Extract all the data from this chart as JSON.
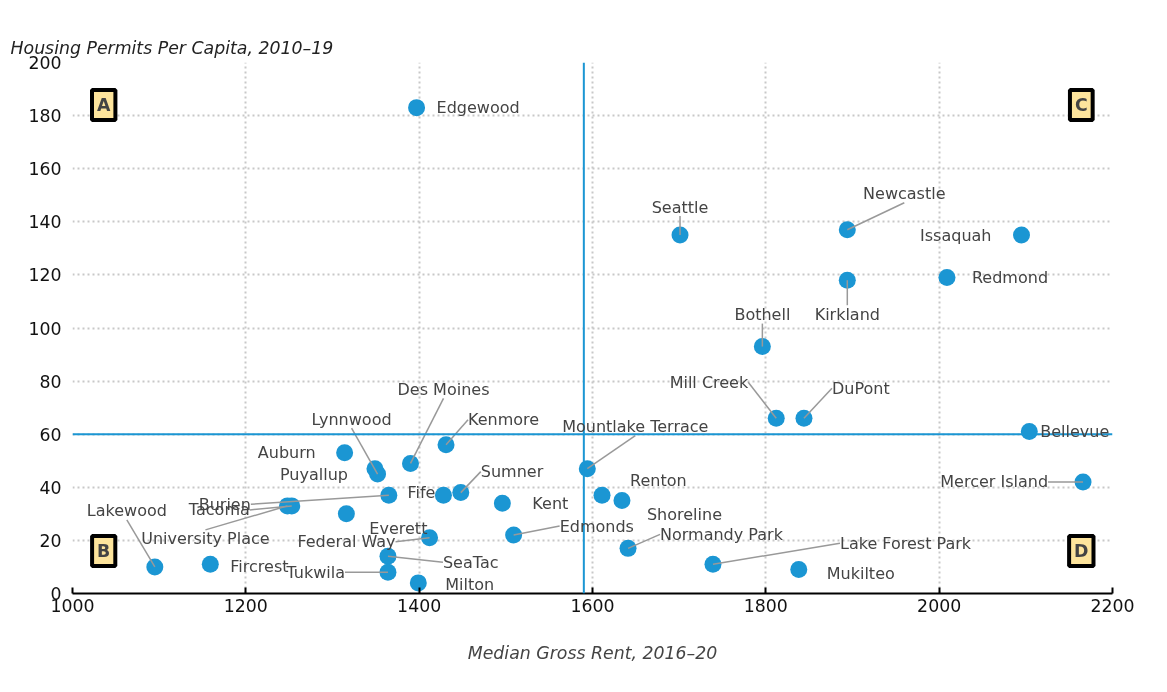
{
  "chart_data": {
    "type": "scatter",
    "xlabel": "Median Gross Rent, 2016–20",
    "ylabel": "Housing Permits Per Capita, 2010–19",
    "xlim": [
      1000,
      2200
    ],
    "xticks": [
      1000,
      1200,
      1400,
      1600,
      1800,
      2000,
      2200
    ],
    "ylim": [
      0,
      200
    ],
    "yticks": [
      0,
      20,
      40,
      60,
      80,
      100,
      120,
      140,
      160,
      180,
      200
    ],
    "grid": true,
    "marker": "circle",
    "series": [
      {
        "color": "#1b96d3",
        "x": [
          1397,
          1701,
          1894,
          2095,
          1894,
          2009,
          1796,
          1812,
          1844,
          2104,
          2166,
          1594,
          1611,
          1634,
          1641,
          1739,
          1838,
          1509,
          1496,
          1448,
          1428,
          1431,
          1390,
          1352,
          1349,
          1314,
          1365,
          1253,
          1248,
          1316,
          1412,
          1364,
          1364,
          1399,
          1159,
          1095
        ],
        "values": [
          183,
          135,
          137,
          135,
          118,
          119,
          93,
          66,
          66,
          61,
          42,
          47,
          37,
          35,
          17,
          11,
          9,
          22,
          34,
          38,
          37,
          56,
          49,
          45,
          47,
          53,
          37,
          33,
          33,
          30,
          21,
          14,
          8,
          4,
          11,
          10
        ]
      }
    ],
    "ref_lines": [
      {
        "axis": "x",
        "value": 1590,
        "color": "#1b96d3"
      },
      {
        "axis": "y",
        "value": 60,
        "color": "#1b96d3"
      }
    ],
    "annotations": [
      {
        "text": "Edgewood",
        "x": 1397,
        "y": 183
      },
      {
        "text": "Seattle",
        "x": 1701,
        "y": 135
      },
      {
        "text": "Newcastle",
        "x": 1894,
        "y": 137
      },
      {
        "text": "Issaquah",
        "x": 2095,
        "y": 135
      },
      {
        "text": "Kirkland",
        "x": 1894,
        "y": 118
      },
      {
        "text": "Redmond",
        "x": 2009,
        "y": 119
      },
      {
        "text": "Bothell",
        "x": 1796,
        "y": 93
      },
      {
        "text": "Mill Creek",
        "x": 1812,
        "y": 66
      },
      {
        "text": "DuPont",
        "x": 1844,
        "y": 66
      },
      {
        "text": "Bellevue",
        "x": 2104,
        "y": 61
      },
      {
        "text": "Mercer Island",
        "x": 2166,
        "y": 42
      },
      {
        "text": "Mountlake Terrace",
        "x": 1594,
        "y": 47
      },
      {
        "text": "Renton",
        "x": 1611,
        "y": 37
      },
      {
        "text": "Shoreline",
        "x": 1634,
        "y": 35
      },
      {
        "text": "Normandy Park",
        "x": 1641,
        "y": 17
      },
      {
        "text": "Lake Forest Park",
        "x": 1739,
        "y": 11
      },
      {
        "text": "Mukilteo",
        "x": 1838,
        "y": 9
      },
      {
        "text": "Edmonds",
        "x": 1509,
        "y": 22
      },
      {
        "text": "Kent",
        "x": 1496,
        "y": 34
      },
      {
        "text": "Sumner",
        "x": 1448,
        "y": 38
      },
      {
        "text": "Fife",
        "x": 1428,
        "y": 37
      },
      {
        "text": "Kenmore",
        "x": 1431,
        "y": 56
      },
      {
        "text": "Des Moines",
        "x": 1390,
        "y": 49
      },
      {
        "text": "Lynnwood",
        "x": 1352,
        "y": 45
      },
      {
        "text": "Puyallup",
        "x": 1349,
        "y": 47
      },
      {
        "text": "Auburn",
        "x": 1314,
        "y": 53
      },
      {
        "text": "Burien",
        "x": 1365,
        "y": 37
      },
      {
        "text": "Tacoma",
        "x": 1253,
        "y": 33
      },
      {
        "text": "University Place",
        "x": 1248,
        "y": 33
      },
      {
        "text": "Everett",
        "x": 1316,
        "y": 30
      },
      {
        "text": "Federal Way",
        "x": 1412,
        "y": 21
      },
      {
        "text": "SeaTac",
        "x": 1364,
        "y": 14
      },
      {
        "text": "Tukwila",
        "x": 1364,
        "y": 8
      },
      {
        "text": "Milton",
        "x": 1399,
        "y": 4
      },
      {
        "text": "Fircrest",
        "x": 1159,
        "y": 11
      },
      {
        "text": "Lakewood",
        "x": 1095,
        "y": 10
      },
      "A",
      "B",
      "C",
      "D"
    ]
  }
}
